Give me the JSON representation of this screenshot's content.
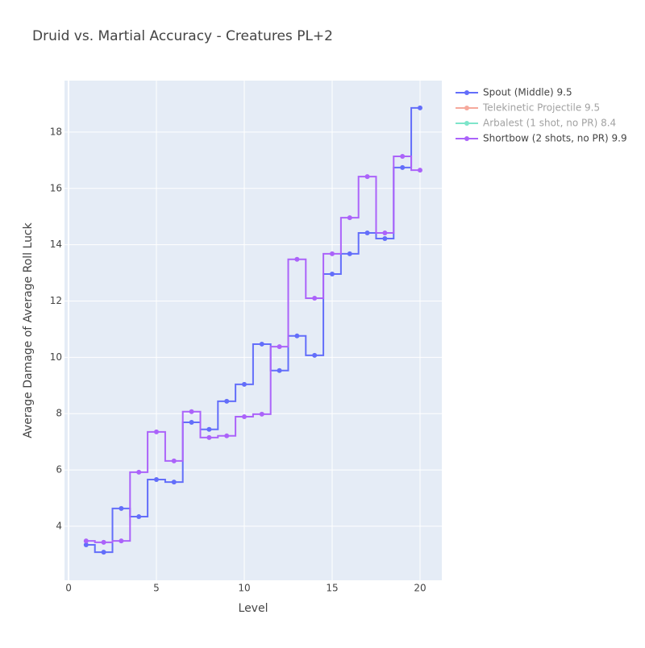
{
  "chart_data": {
    "type": "line",
    "line_shape": "hvh",
    "title": "Druid vs. Martial Accuracy - Creatures PL+2",
    "x_label": "Level",
    "y_label": "Average Damage of Average Roll Luck",
    "x": [
      1,
      2,
      3,
      4,
      5,
      6,
      7,
      8,
      9,
      10,
      11,
      12,
      13,
      14,
      15,
      16,
      17,
      18,
      19,
      20
    ],
    "series": [
      {
        "name": "Spout (Middle) 9.5",
        "color": "#636efa",
        "visible": true,
        "values": [
          3.34,
          3.08,
          4.63,
          4.34,
          5.66,
          5.57,
          7.69,
          7.44,
          8.44,
          9.04,
          10.47,
          9.53,
          10.76,
          10.07,
          12.96,
          13.68,
          14.42,
          14.22,
          16.74,
          18.86
        ]
      },
      {
        "name": "Telekinetic Projectile 9.5",
        "color": "#ef553b",
        "visible": false
      },
      {
        "name": "Arbalest (1 shot, no PR) 8.4",
        "color": "#00cc96",
        "visible": false
      },
      {
        "name": "Shortbow (2 shots, no PR) 9.9",
        "color": "#ab63fa",
        "visible": true,
        "values": [
          3.48,
          3.43,
          3.48,
          5.92,
          7.35,
          6.32,
          8.07,
          7.15,
          7.21,
          7.89,
          7.98,
          10.38,
          13.48,
          12.1,
          13.68,
          14.96,
          16.42,
          14.42,
          17.14,
          16.65
        ]
      }
    ],
    "xlim": [
      -0.23,
      21.24
    ],
    "xticks": [
      0,
      5,
      10,
      15,
      20
    ],
    "ylim": [
      2.08,
      19.83
    ],
    "yticks": [
      4,
      6,
      8,
      10,
      12,
      14,
      16,
      18
    ],
    "grid": true,
    "legend": "right"
  }
}
